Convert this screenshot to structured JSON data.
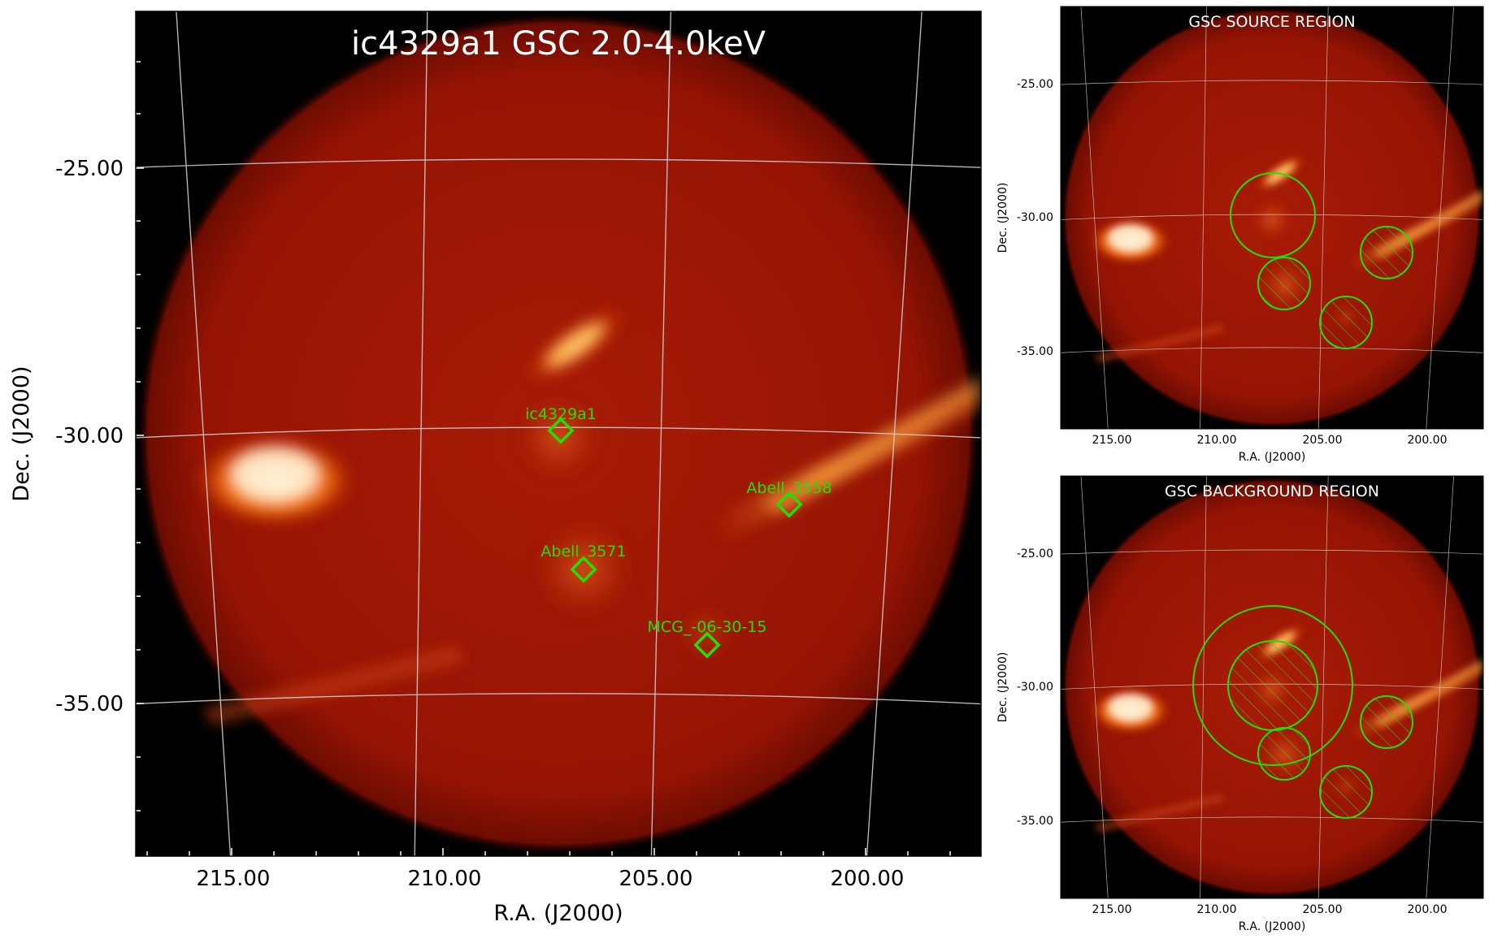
{
  "main": {
    "title": "ic4329a1 GSC 2.0-4.0keV",
    "xlabel": "R.A. (J2000)",
    "ylabel": "Dec. (J2000)",
    "xticks": [
      "215.00",
      "210.00",
      "205.00",
      "200.00"
    ],
    "yticks": [
      "-25.00",
      "-30.00",
      "-35.00"
    ],
    "sources": [
      {
        "name": "ic4329a1"
      },
      {
        "name": "Abell_3558"
      },
      {
        "name": "Abell_3571"
      },
      {
        "name": "MCG_-06-30-15"
      }
    ]
  },
  "source_panel": {
    "title": "GSC SOURCE REGION",
    "xlabel": "R.A. (J2000)",
    "ylabel": "Dec. (J2000)",
    "xticks": [
      "215.00",
      "210.00",
      "205.00",
      "200.00"
    ],
    "yticks": [
      "-25.00",
      "-30.00",
      "-35.00"
    ]
  },
  "background_panel": {
    "title": "GSC BACKGROUND REGION",
    "xlabel": "R.A. (J2000)",
    "ylabel": "Dec. (J2000)",
    "xticks": [
      "215.00",
      "210.00",
      "205.00",
      "200.00"
    ],
    "yticks": [
      "-25.00",
      "-30.00",
      "-35.00"
    ]
  },
  "colors": {
    "frame_bg": "#000000",
    "map_base": "#9c1604",
    "region": "#22e000",
    "grid": "#d8d8d8"
  }
}
